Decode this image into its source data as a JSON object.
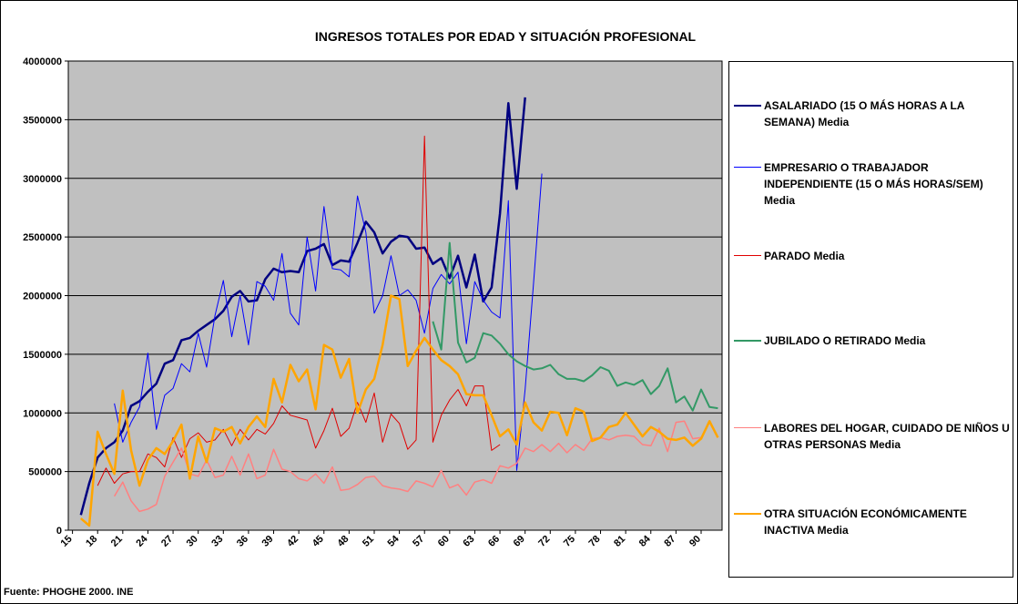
{
  "chart_data": {
    "type": "line",
    "title": "INGRESOS TOTALES POR EDAD Y SITUACIÓN PROFESIONAL",
    "source": "Fuente: PHOGHE 2000. INE",
    "x": [
      15,
      16,
      17,
      18,
      19,
      20,
      21,
      22,
      23,
      24,
      25,
      26,
      27,
      28,
      29,
      30,
      31,
      32,
      33,
      34,
      35,
      36,
      37,
      38,
      39,
      40,
      41,
      42,
      43,
      44,
      45,
      46,
      47,
      48,
      49,
      50,
      51,
      52,
      53,
      54,
      55,
      56,
      57,
      58,
      59,
      60,
      61,
      62,
      63,
      64,
      65,
      66,
      67,
      68,
      69,
      70,
      71,
      72,
      73,
      74,
      75,
      76,
      77,
      78,
      79,
      80,
      81,
      82,
      83,
      84,
      85,
      86,
      87,
      88,
      89,
      90,
      91,
      92
    ],
    "xlim": [
      14.5,
      92.5
    ],
    "xticks": [
      15,
      18,
      21,
      24,
      27,
      30,
      33,
      36,
      39,
      42,
      45,
      48,
      51,
      54,
      57,
      60,
      63,
      66,
      69,
      72,
      75,
      78,
      81,
      84,
      87,
      90
    ],
    "ylim": [
      0,
      4000000
    ],
    "yticks": [
      0,
      500000,
      1000000,
      1500000,
      2000000,
      2500000,
      3000000,
      3500000,
      4000000
    ],
    "grid": true,
    "series": [
      {
        "name": "ASALARIADO (15 O MÁS HORAS A LA SEMANA) Media",
        "color": "#000080",
        "values": [
          null,
          130000,
          400000,
          620000,
          700000,
          750000,
          850000,
          1060000,
          1100000,
          1180000,
          1250000,
          1420000,
          1450000,
          1620000,
          1640000,
          1700000,
          1750000,
          1800000,
          1870000,
          1990000,
          2040000,
          1950000,
          1960000,
          2140000,
          2230000,
          2200000,
          2210000,
          2200000,
          2380000,
          2400000,
          2440000,
          2260000,
          2300000,
          2290000,
          2450000,
          2630000,
          2540000,
          2360000,
          2460000,
          2510000,
          2500000,
          2400000,
          2410000,
          2270000,
          2320000,
          2150000,
          2340000,
          2070000,
          2350000,
          1950000,
          2070000,
          2700000,
          3640000,
          2910000,
          3690000,
          null,
          null,
          null,
          null,
          null,
          null,
          null,
          null,
          null,
          null,
          null,
          null,
          null,
          null,
          null,
          null,
          null,
          null,
          null,
          null,
          null,
          null,
          null
        ]
      },
      {
        "name": "EMPRESARIO O TRABAJADOR INDEPENDIENTE (15 O MÁS HORAS/SEM) Media",
        "color": "#0000ff",
        "values": [
          null,
          null,
          null,
          null,
          null,
          1080000,
          750000,
          920000,
          1050000,
          1510000,
          860000,
          1150000,
          1210000,
          1420000,
          1350000,
          1680000,
          1390000,
          1830000,
          2130000,
          1650000,
          2000000,
          1580000,
          2120000,
          2080000,
          1960000,
          2360000,
          1850000,
          1750000,
          2500000,
          2040000,
          2760000,
          2230000,
          2220000,
          2160000,
          2850000,
          2540000,
          1850000,
          2000000,
          2340000,
          2000000,
          2050000,
          1960000,
          1680000,
          2060000,
          2180000,
          2100000,
          2200000,
          1590000,
          2120000,
          1960000,
          1860000,
          1810000,
          2810000,
          510000,
          1200000,
          2100000,
          3040000,
          null,
          null,
          null,
          null,
          null,
          null,
          null,
          null,
          null,
          null,
          null,
          null,
          null,
          null,
          null,
          null,
          null,
          null,
          null,
          null,
          null
        ]
      },
      {
        "name": "PARADO Media",
        "color": "#e00000",
        "values": [
          null,
          null,
          null,
          380000,
          530000,
          400000,
          480000,
          500000,
          500000,
          650000,
          620000,
          540000,
          790000,
          620000,
          780000,
          830000,
          750000,
          770000,
          860000,
          720000,
          860000,
          770000,
          860000,
          820000,
          910000,
          1060000,
          980000,
          960000,
          940000,
          700000,
          850000,
          1040000,
          800000,
          870000,
          1090000,
          920000,
          1170000,
          750000,
          990000,
          910000,
          690000,
          770000,
          3360000,
          750000,
          980000,
          1110000,
          1200000,
          1060000,
          1230000,
          1230000,
          680000,
          730000,
          null,
          null,
          null,
          null,
          null,
          null,
          null,
          null,
          null,
          null,
          null,
          null,
          null,
          null,
          null,
          null,
          null,
          null,
          null,
          null,
          null,
          null,
          null,
          null,
          null,
          null
        ]
      },
      {
        "name": "JUBILADO O RETIRADO Media",
        "color": "#339966",
        "values": [
          null,
          null,
          null,
          null,
          null,
          null,
          null,
          null,
          null,
          null,
          null,
          null,
          null,
          null,
          null,
          null,
          null,
          null,
          null,
          null,
          null,
          null,
          null,
          null,
          null,
          null,
          null,
          null,
          null,
          null,
          null,
          null,
          null,
          null,
          null,
          null,
          null,
          null,
          null,
          null,
          null,
          null,
          null,
          1780000,
          1540000,
          2450000,
          1600000,
          1430000,
          1470000,
          1680000,
          1660000,
          1590000,
          1500000,
          1440000,
          1400000,
          1370000,
          1380000,
          1410000,
          1330000,
          1290000,
          1290000,
          1270000,
          1320000,
          1390000,
          1360000,
          1230000,
          1260000,
          1240000,
          1280000,
          1160000,
          1230000,
          1380000,
          1090000,
          1140000,
          1020000,
          1200000,
          1050000,
          1040000
        ]
      },
      {
        "name": "LABORES DEL HOGAR, CUIDADO DE NIÑOS U OTRAS PERSONAS Media",
        "color": "#ff8080",
        "values": [
          null,
          null,
          null,
          null,
          null,
          290000,
          410000,
          250000,
          160000,
          180000,
          220000,
          460000,
          580000,
          700000,
          480000,
          460000,
          600000,
          450000,
          470000,
          630000,
          470000,
          650000,
          440000,
          470000,
          690000,
          520000,
          500000,
          440000,
          420000,
          480000,
          400000,
          540000,
          340000,
          350000,
          390000,
          450000,
          460000,
          380000,
          360000,
          350000,
          330000,
          420000,
          400000,
          370000,
          510000,
          360000,
          390000,
          300000,
          410000,
          430000,
          400000,
          550000,
          530000,
          570000,
          700000,
          670000,
          730000,
          670000,
          740000,
          660000,
          730000,
          680000,
          780000,
          790000,
          770000,
          800000,
          810000,
          800000,
          730000,
          720000,
          870000,
          670000,
          920000,
          930000,
          780000,
          790000,
          920000,
          790000
        ]
      },
      {
        "name": "OTRA SITUACIÓN ECONÓMICAMENTE INACTIVA Media",
        "color": "#ffa500",
        "values": [
          null,
          100000,
          40000,
          840000,
          650000,
          480000,
          1190000,
          680000,
          380000,
          600000,
          700000,
          650000,
          760000,
          900000,
          440000,
          800000,
          580000,
          870000,
          840000,
          880000,
          740000,
          880000,
          970000,
          880000,
          1290000,
          1090000,
          1410000,
          1270000,
          1370000,
          1030000,
          1580000,
          1540000,
          1300000,
          1460000,
          1000000,
          1200000,
          1290000,
          1580000,
          2000000,
          1970000,
          1400000,
          1530000,
          1640000,
          1540000,
          1450000,
          1400000,
          1330000,
          1160000,
          1150000,
          1150000,
          980000,
          800000,
          860000,
          730000,
          1090000,
          920000,
          850000,
          1010000,
          1000000,
          810000,
          1040000,
          1010000,
          760000,
          790000,
          880000,
          900000,
          1000000,
          900000,
          800000,
          880000,
          840000,
          780000,
          770000,
          790000,
          720000,
          780000,
          930000,
          790000
        ]
      }
    ]
  }
}
